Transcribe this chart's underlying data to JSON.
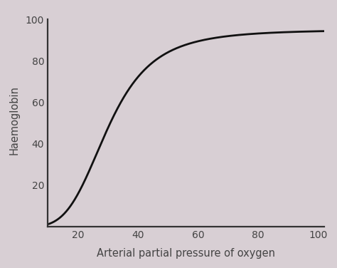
{
  "xlabel": "Arterial partial pressure of oxygen",
  "ylabel": "Haemoglobin",
  "xlim": [
    10,
    102
  ],
  "ylim": [
    -2,
    105
  ],
  "xticks": [
    20,
    40,
    60,
    80,
    100
  ],
  "yticks": [
    20,
    40,
    60,
    80,
    100
  ],
  "background_color": "#d8cfd4",
  "line_color": "#111111",
  "line_width": 2.0,
  "xlabel_fontsize": 10.5,
  "ylabel_fontsize": 10.5,
  "tick_fontsize": 10,
  "saturation_max": 95,
  "hill_n": 4.0,
  "hill_p50": 30,
  "spine_color": "#333333",
  "tick_color": "#444444"
}
